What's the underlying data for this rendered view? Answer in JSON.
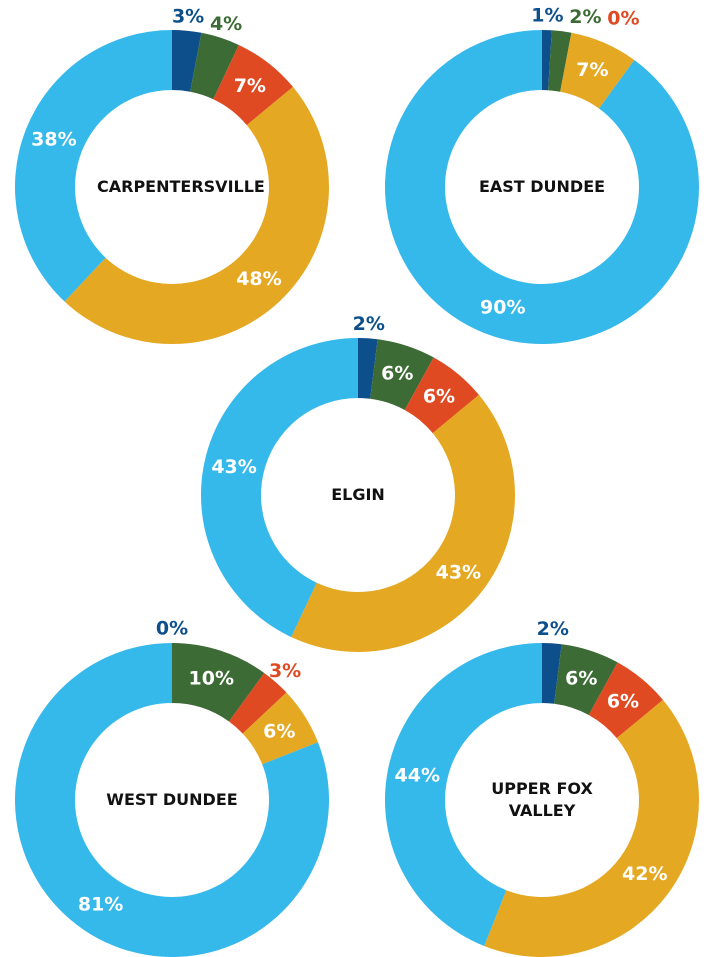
{
  "chart_data": [
    {
      "type": "pie",
      "title": "CARPENTERSVILLE",
      "values": [
        3,
        4,
        7,
        48,
        38
      ],
      "value_labels": [
        "3%",
        "4%",
        "7%",
        "48%",
        "38%"
      ],
      "colors": [
        "#0d4f8b",
        "#3d6b35",
        "#e04a22",
        "#e5a823",
        "#35b8ea"
      ]
    },
    {
      "type": "pie",
      "title": "EAST DUNDEE",
      "values": [
        1,
        2,
        0,
        7,
        90
      ],
      "value_labels": [
        "1%",
        "2%",
        "0%",
        "7%",
        "90%"
      ],
      "colors": [
        "#0d4f8b",
        "#3d6b35",
        "#e04a22",
        "#e5a823",
        "#35b8ea"
      ]
    },
    {
      "type": "pie",
      "title": "ELGIN",
      "values": [
        2,
        6,
        6,
        43,
        43
      ],
      "value_labels": [
        "2%",
        "6%",
        "6%",
        "43%",
        "43%"
      ],
      "colors": [
        "#0d4f8b",
        "#3d6b35",
        "#e04a22",
        "#e5a823",
        "#35b8ea"
      ]
    },
    {
      "type": "pie",
      "title": "WEST DUNDEE",
      "values": [
        0,
        10,
        3,
        6,
        81
      ],
      "value_labels": [
        "0%",
        "10%",
        "3%",
        "6%",
        "81%"
      ],
      "colors": [
        "#0d4f8b",
        "#3d6b35",
        "#e04a22",
        "#e5a823",
        "#35b8ea"
      ]
    },
    {
      "type": "pie",
      "title": "UPPER FOX VALLEY",
      "values": [
        2,
        6,
        6,
        42,
        44
      ],
      "value_labels": [
        "2%",
        "6%",
        "6%",
        "42%",
        "44%"
      ],
      "colors": [
        "#0d4f8b",
        "#3d6b35",
        "#e04a22",
        "#e5a823",
        "#35b8ea"
      ]
    }
  ]
}
